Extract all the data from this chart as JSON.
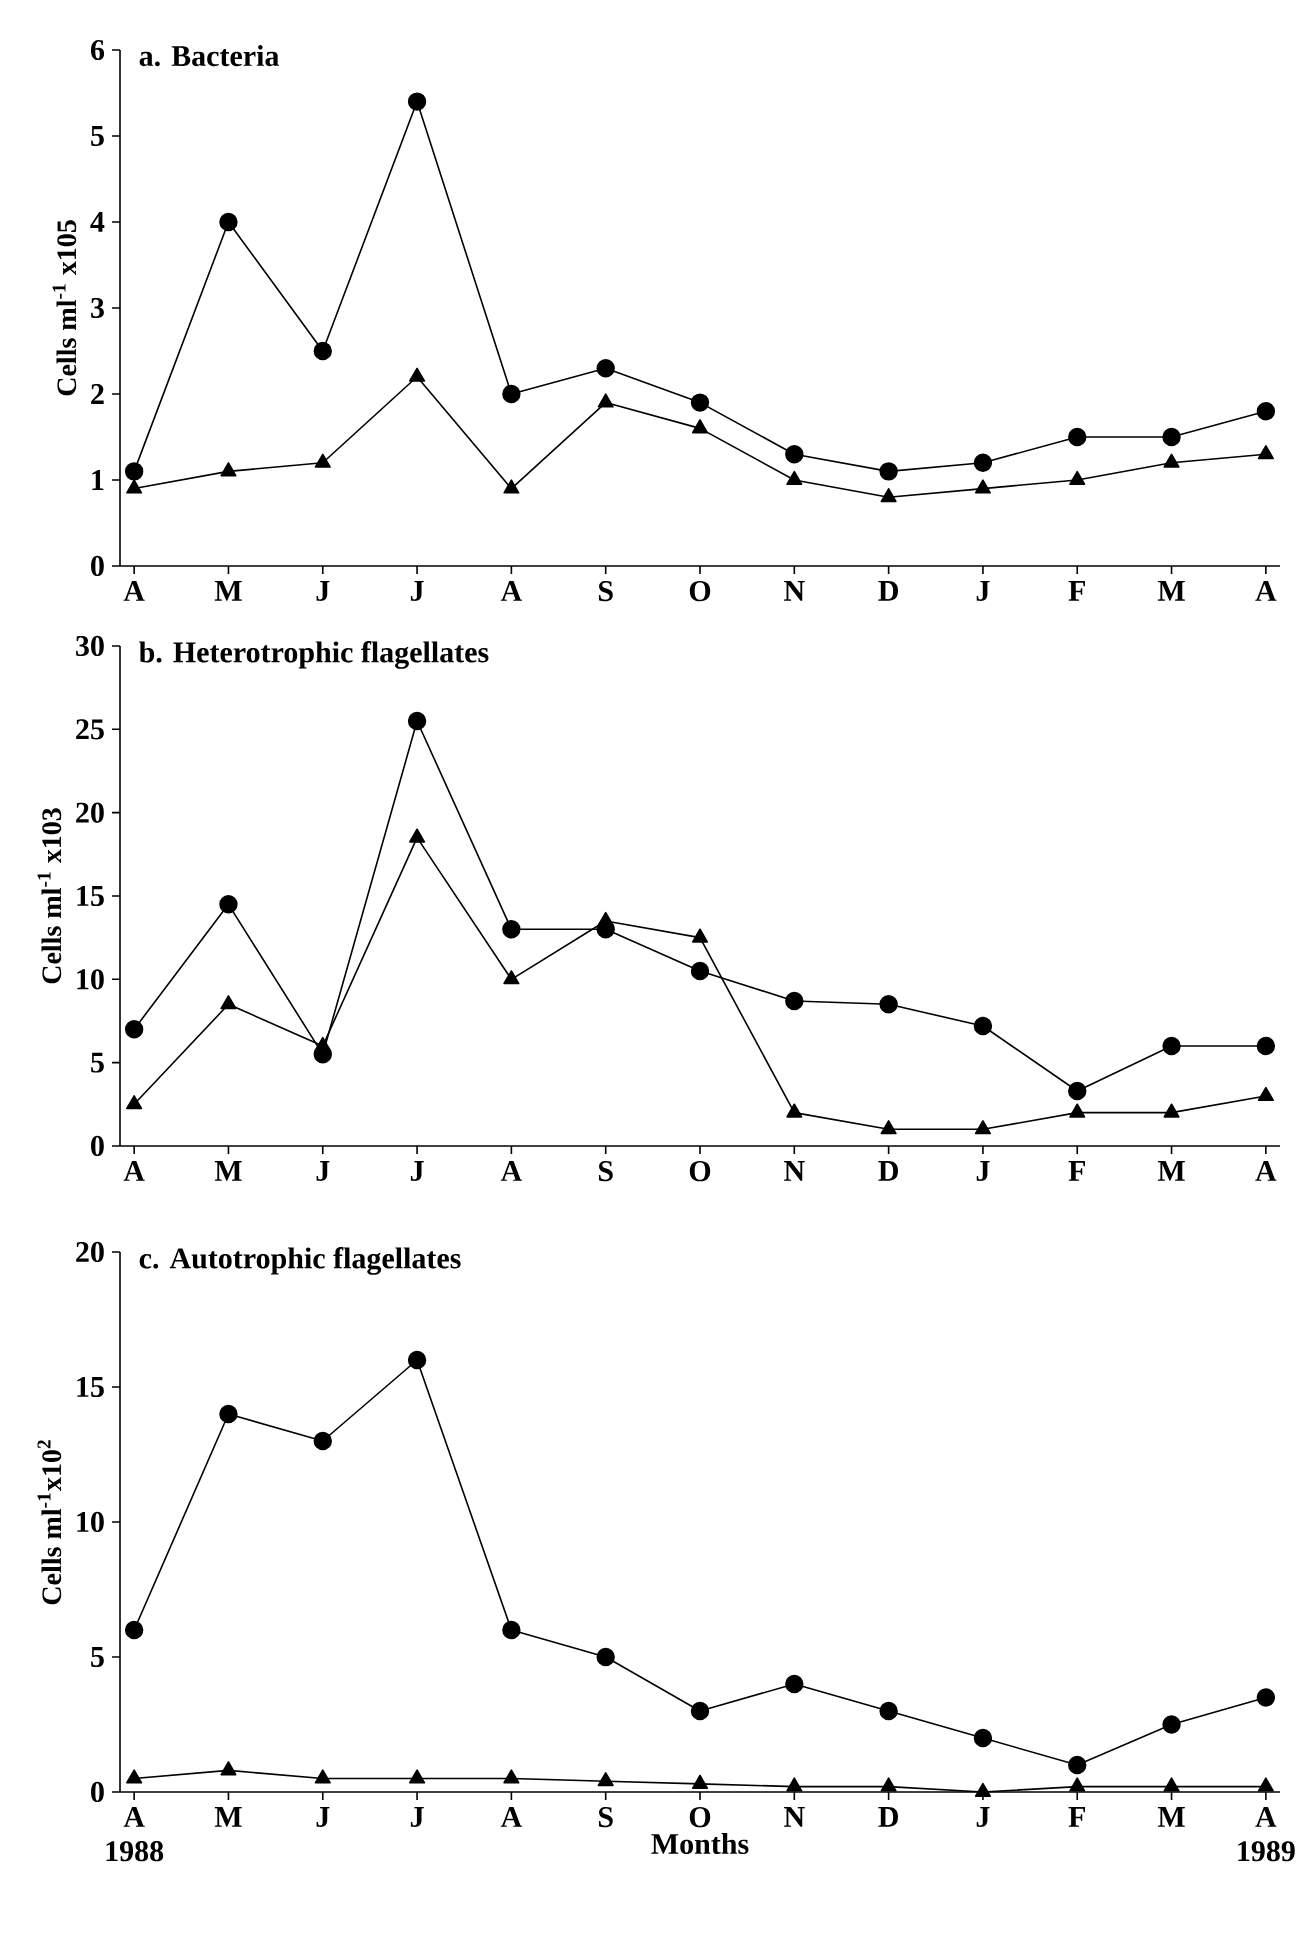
{
  "chart_data": [
    {
      "type": "line",
      "title": "a. Bacteria",
      "ylabel": "Cells ml$^{-1}$ x105",
      "categories": [
        "A",
        "M",
        "J",
        "J",
        "A",
        "S",
        "O",
        "N",
        "D",
        "J",
        "F",
        "M",
        "A"
      ],
      "series": [
        {
          "color": "#000000",
          "marker": "circle",
          "values": [
            1.1,
            4.0,
            2.5,
            5.4,
            2.0,
            2.3,
            1.9,
            1.3,
            1.1,
            1.2,
            1.5,
            1.5,
            1.8
          ]
        },
        {
          "color": "#000000",
          "marker": "triangle",
          "values": [
            0.9,
            1.1,
            1.2,
            2.2,
            0.9,
            1.9,
            1.6,
            1.0,
            0.8,
            0.9,
            1.0,
            1.2,
            1.3
          ]
        }
      ],
      "ylim": [
        0,
        6
      ],
      "yticks": [
        0,
        1,
        2,
        3,
        4,
        5,
        6
      ],
      "line_style": "solid"
    },
    {
      "type": "line",
      "title": "b. Heterotrophic flagellates",
      "ylabel": "Cells ml$^{-1}$ x103",
      "categories": [
        "A",
        "M",
        "J",
        "J",
        "A",
        "S",
        "O",
        "N",
        "D",
        "J",
        "F",
        "M",
        "A"
      ],
      "series": [
        {
          "color": "#000000",
          "marker": "circle",
          "values": [
            7,
            14.5,
            5.5,
            25.5,
            13,
            13,
            10.5,
            8.7,
            8.5,
            7.2,
            3.3,
            6,
            6
          ]
        },
        {
          "color": "#000000",
          "marker": "triangle",
          "values": [
            2.5,
            8.5,
            6,
            18.5,
            10,
            13.5,
            12.5,
            2,
            1,
            1,
            2,
            2,
            3
          ]
        }
      ],
      "ylim": [
        0,
        30
      ],
      "yticks": [
        0,
        5,
        10,
        15,
        20,
        25,
        30
      ],
      "line_style": "solid"
    },
    {
      "type": "line",
      "title": "c. Autotrophic flagellates",
      "ylabel": "Cells ml$^{-1}$x10$^{2}$",
      "xlabel": "Months",
      "categories": [
        "A",
        "M",
        "J",
        "J",
        "A",
        "S",
        "O",
        "N",
        "D",
        "J",
        "F",
        "M",
        "A"
      ],
      "series": [
        {
          "color": "#000000",
          "marker": "circle",
          "values": [
            6,
            14,
            13,
            16,
            6,
            5,
            3,
            4,
            3,
            2,
            1,
            2.5,
            3.5
          ]
        },
        {
          "color": "#000000",
          "marker": "triangle",
          "values": [
            0.5,
            0.8,
            0.5,
            0.5,
            0.5,
            0.4,
            0.3,
            0.2,
            0.2,
            0,
            0.2,
            0.2,
            0.2
          ]
        }
      ],
      "ylim": [
        0,
        20
      ],
      "yticks": [
        0,
        5,
        10,
        15,
        20
      ],
      "line_style": "solid",
      "annotations": [
        "1988",
        "1989"
      ]
    }
  ]
}
